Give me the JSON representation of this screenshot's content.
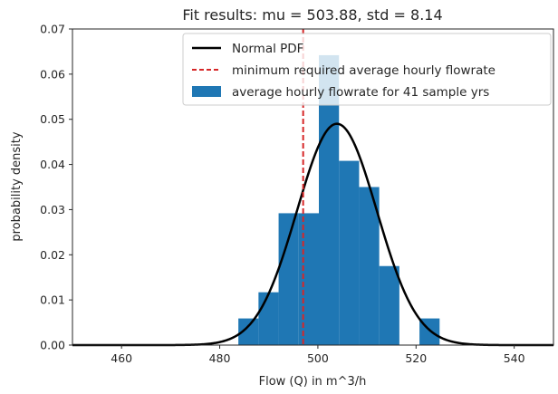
{
  "chart_data": {
    "type": "bar",
    "title": "Fit results: mu = 503.88,  std = 8.14",
    "xlabel": "Flow (Q) in m^3/h",
    "ylabel": "probability density",
    "xlim": [
      450,
      548
    ],
    "ylim": [
      0,
      0.07
    ],
    "xticks": [
      460,
      480,
      500,
      520,
      540
    ],
    "yticks": [
      "0.00",
      "0.01",
      "0.02",
      "0.03",
      "0.04",
      "0.05",
      "0.06",
      "0.07"
    ],
    "grid": false,
    "legend_position": "top-right",
    "histogram": {
      "name": "average hourly flowrate for 41 sample yrs",
      "color": "#1f77b4",
      "bin_edges": [
        483.8,
        487.9,
        492.0,
        496.1,
        500.2,
        504.3,
        508.4,
        512.5,
        516.6,
        520.7,
        524.8
      ],
      "values": [
        0.0059,
        0.0117,
        0.0292,
        0.0292,
        0.0642,
        0.0408,
        0.035,
        0.0175,
        0.0,
        0.0059
      ]
    },
    "pdf": {
      "name": "Normal PDF",
      "color": "#000000",
      "mu": 503.88,
      "std": 8.14
    },
    "threshold": {
      "name": "minimum required average hourly flowrate",
      "color": "#d62728",
      "x": 497
    }
  }
}
